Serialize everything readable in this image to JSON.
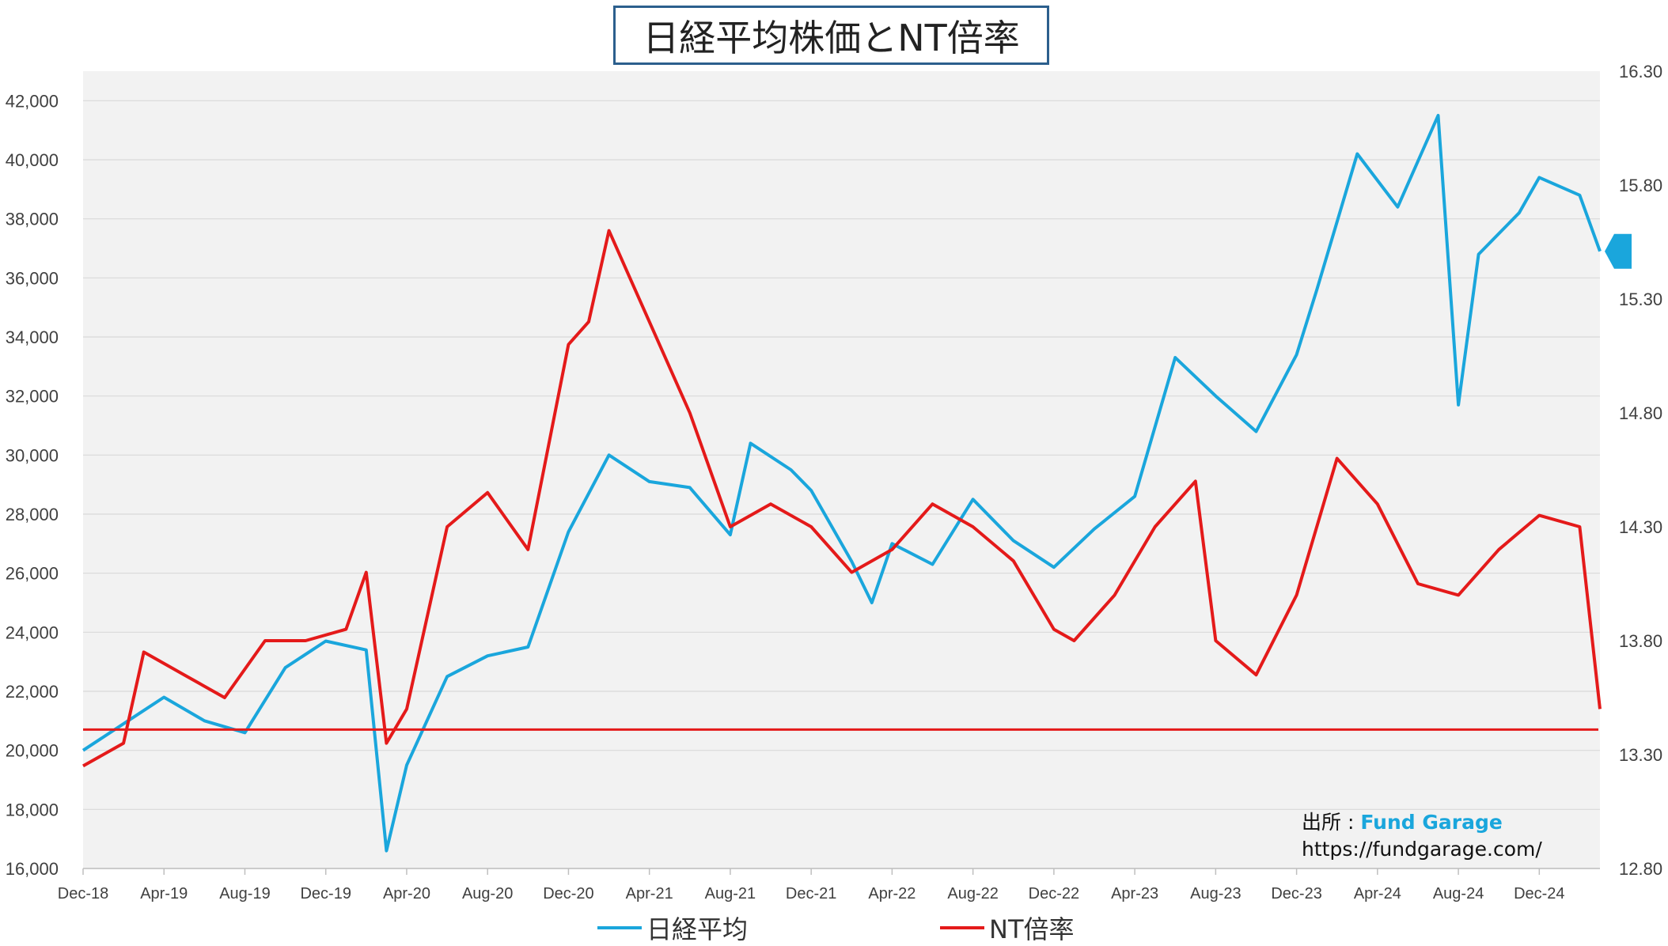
{
  "chart_data": {
    "type": "line",
    "title": "日経平均株価とNT倍率",
    "x_tick_labels": [
      "Dec-18",
      "Apr-19",
      "Aug-19",
      "Dec-19",
      "Apr-20",
      "Aug-20",
      "Dec-20",
      "Apr-21",
      "Aug-21",
      "Dec-21",
      "Apr-22",
      "Aug-22",
      "Dec-22",
      "Apr-23",
      "Aug-23",
      "Dec-23",
      "Apr-24",
      "Aug-24",
      "Dec-24"
    ],
    "x_range": [
      "2018-12",
      "2025-03"
    ],
    "y_left": {
      "ylim": [
        16000,
        43000
      ],
      "ticks": [
        "16,000",
        "18,000",
        "20,000",
        "22,000",
        "24,000",
        "26,000",
        "28,000",
        "30,000",
        "32,000",
        "34,000",
        "36,000",
        "38,000",
        "40,000",
        "42,000"
      ]
    },
    "y_right": {
      "ylim": [
        12.8,
        16.3
      ],
      "ticks": [
        "12.80",
        "13.30",
        "13.80",
        "14.30",
        "14.80",
        "15.30",
        "15.80",
        "16.30"
      ]
    },
    "series": [
      {
        "name": "日経平均",
        "axis": "left",
        "color": "#1aa6dc",
        "x": [
          "2018-12",
          "2019-02",
          "2019-04",
          "2019-06",
          "2019-08",
          "2019-10",
          "2019-12",
          "2020-02",
          "2020-03",
          "2020-04",
          "2020-06",
          "2020-08",
          "2020-10",
          "2020-12",
          "2021-02",
          "2021-04",
          "2021-06",
          "2021-08",
          "2021-09",
          "2021-11",
          "2021-12",
          "2022-02",
          "2022-03",
          "2022-04",
          "2022-06",
          "2022-08",
          "2022-10",
          "2022-12",
          "2023-02",
          "2023-04",
          "2023-06",
          "2023-08",
          "2023-10",
          "2023-12",
          "2024-01",
          "2024-03",
          "2024-05",
          "2024-07",
          "2024-08",
          "2024-09",
          "2024-11",
          "2024-12",
          "2025-02",
          "2025-03"
        ],
        "values": [
          20000,
          20900,
          21800,
          21000,
          20600,
          22800,
          23700,
          23400,
          16600,
          19500,
          22500,
          23200,
          23500,
          27400,
          30000,
          29100,
          28900,
          27300,
          30400,
          29500,
          28800,
          26400,
          25000,
          27000,
          26300,
          28500,
          27100,
          26200,
          27500,
          28600,
          33300,
          32000,
          30800,
          33400,
          35600,
          40200,
          38400,
          41500,
          31700,
          36800,
          38200,
          39400,
          38800,
          36900
        ]
      },
      {
        "name": "NT倍率",
        "axis": "right",
        "color": "#e41a1a",
        "x": [
          "2018-12",
          "2019-02",
          "2019-03",
          "2019-05",
          "2019-07",
          "2019-09",
          "2019-11",
          "2020-01",
          "2020-02",
          "2020-03",
          "2020-04",
          "2020-06",
          "2020-08",
          "2020-10",
          "2020-12",
          "2021-01",
          "2021-02",
          "2021-03",
          "2021-04",
          "2021-06",
          "2021-08",
          "2021-10",
          "2021-12",
          "2022-02",
          "2022-04",
          "2022-06",
          "2022-08",
          "2022-10",
          "2022-12",
          "2023-01",
          "2023-03",
          "2023-05",
          "2023-07",
          "2023-08",
          "2023-10",
          "2023-12",
          "2024-02",
          "2024-04",
          "2024-06",
          "2024-08",
          "2024-10",
          "2024-12",
          "2025-02",
          "2025-03"
        ],
        "values": [
          13.25,
          13.35,
          13.75,
          13.65,
          13.55,
          13.8,
          13.8,
          13.85,
          14.1,
          13.35,
          13.5,
          14.3,
          14.45,
          14.2,
          15.1,
          15.2,
          15.6,
          15.4,
          15.2,
          14.8,
          14.3,
          14.4,
          14.3,
          14.1,
          14.2,
          14.4,
          14.3,
          14.15,
          13.85,
          13.8,
          14.0,
          14.3,
          14.5,
          13.8,
          13.65,
          14.0,
          14.6,
          14.4,
          14.05,
          14.0,
          14.2,
          14.35,
          14.3,
          13.5
        ]
      }
    ],
    "reference_line": {
      "axis": "right",
      "value": 13.41,
      "color": "#e41a1a"
    },
    "grid": true,
    "legend": "bottom",
    "source_label": "出所 : ",
    "source_name": "Fund Garage",
    "source_url": "https://fundgarage.com/"
  }
}
